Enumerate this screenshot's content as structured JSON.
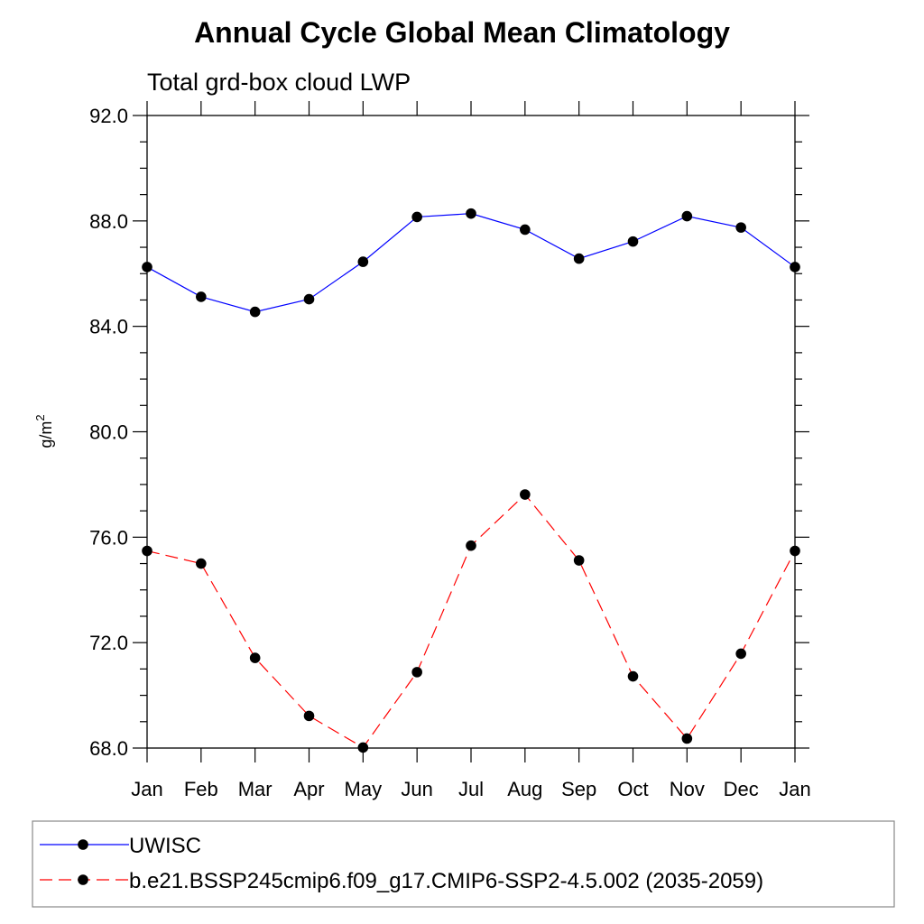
{
  "chart_data": {
    "type": "line",
    "title": "Annual Cycle Global Mean Climatology",
    "subtitle": "Total grd-box cloud LWP",
    "ylabel": "g/m",
    "ylabel_superscript": "2",
    "xlabel": "",
    "categories": [
      "Jan",
      "Feb",
      "Mar",
      "Apr",
      "May",
      "Jun",
      "Jul",
      "Aug",
      "Sep",
      "Oct",
      "Nov",
      "Dec",
      "Jan"
    ],
    "ylim": [
      68.0,
      92.0
    ],
    "yticks": [
      "68.0",
      "72.0",
      "76.0",
      "80.0",
      "84.0",
      "88.0",
      "92.0"
    ],
    "ytick_values": [
      68,
      72,
      76,
      80,
      84,
      88,
      92
    ],
    "grid": false,
    "legend_position": "bottom",
    "series": [
      {
        "name": "UWISC",
        "color": "#0000ff",
        "style": "solid",
        "values": [
          86.25,
          85.12,
          84.55,
          85.03,
          86.45,
          88.15,
          88.28,
          87.67,
          86.57,
          87.22,
          88.18,
          87.75,
          86.25
        ]
      },
      {
        "name": "b.e21.BSSP245cmip6.f09_g17.CMIP6-SSP2-4.5.002 (2035-2059)",
        "color": "#ff0000",
        "style": "dashed",
        "values": [
          75.48,
          75.0,
          71.42,
          69.22,
          68.02,
          70.88,
          75.68,
          77.62,
          75.12,
          70.72,
          68.36,
          71.58,
          75.48
        ]
      }
    ]
  }
}
